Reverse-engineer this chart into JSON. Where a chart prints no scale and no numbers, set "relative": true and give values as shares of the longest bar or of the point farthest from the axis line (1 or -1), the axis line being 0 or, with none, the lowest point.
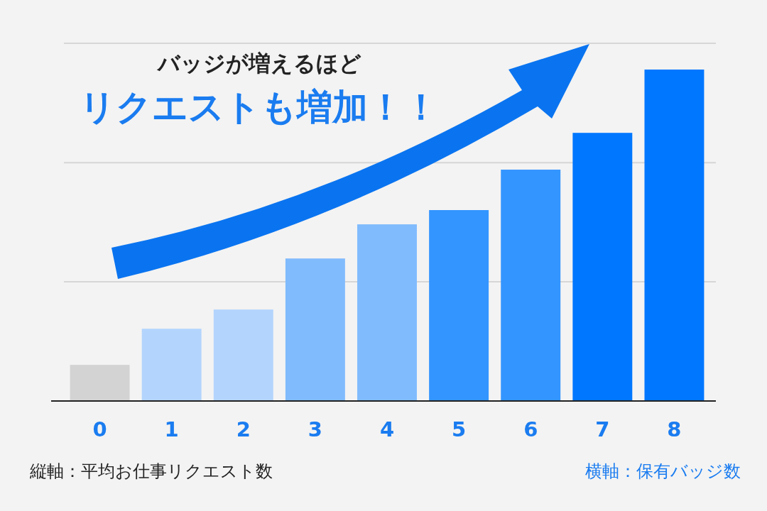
{
  "chart_data": {
    "type": "bar",
    "relative": true,
    "title": "バッジが増えるほど",
    "subtitle": "リクエストも増加！！",
    "xlabel": "横軸：保有バッジ数",
    "ylabel": "縦軸：平均お仕事リクエスト数",
    "ref_lines": [
      {
        "axis": "y",
        "value": 0.36,
        "color": "#d6d6d6"
      },
      {
        "axis": "y",
        "value": 0.719,
        "color": "#d6d6d6"
      },
      {
        "axis": "y",
        "value": 1.079,
        "color": "#d6d6d6"
      }
    ],
    "categories": [
      "0",
      "1",
      "2",
      "3",
      "4",
      "5",
      "6",
      "7",
      "8"
    ],
    "values": [
      0.109,
      0.218,
      0.276,
      0.43,
      0.533,
      0.576,
      0.698,
      0.809,
      1
    ],
    "colors": [
      "#d3d3d3",
      "#b3d4fd",
      "#b3d4fd",
      "#80bbfd",
      "#80bbfd",
      "#3395ff",
      "#3395ff",
      "#0077ff",
      "#0077ff"
    ]
  }
}
